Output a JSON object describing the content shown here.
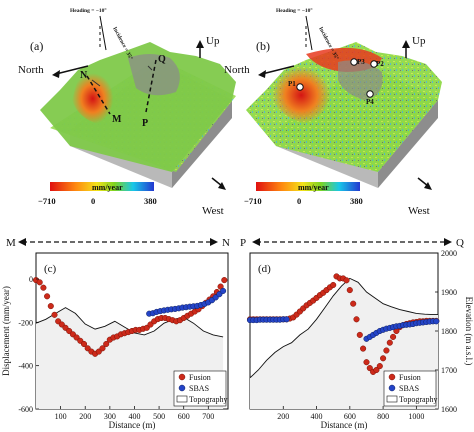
{
  "maps": [
    {
      "panel": "(a)",
      "heading": "Heading = −10°",
      "incidence": "Incidence = 35°",
      "up": "Up",
      "north": "North",
      "west": "West",
      "points": [
        "N",
        "M",
        "Q",
        "P"
      ],
      "colorbar": {
        "unit": "mm/year",
        "ticks": [
          "−710",
          "0",
          "380"
        ]
      }
    },
    {
      "panel": "(b)",
      "heading": "Heading = −10°",
      "incidence": "Incidence = 35°",
      "up": "Up",
      "north": "North",
      "west": "West",
      "points": [
        "P1",
        "P2",
        "P3",
        "P4"
      ],
      "colorbar": {
        "unit": "mm/year",
        "ticks": [
          "−710",
          "0",
          "380"
        ]
      }
    }
  ],
  "profile_arrows": [
    {
      "start": "M",
      "end": "N"
    },
    {
      "start": "P",
      "end": "Q"
    }
  ],
  "chart_data": [
    {
      "panel": "(c)",
      "type": "scatter",
      "xlabel": "Distance (m)",
      "ylabel": "Displacement (mm/year)",
      "xlim": [
        0,
        780
      ],
      "ylim": [
        -600,
        120
      ],
      "xticks": [
        100,
        200,
        300,
        400,
        500,
        600,
        700
      ],
      "yticks": [
        0,
        -200,
        -400,
        -600
      ],
      "series": [
        {
          "name": "Fusion",
          "color": "#cc2a1a",
          "x": [
            0,
            15,
            30,
            45,
            60,
            75,
            90,
            105,
            120,
            135,
            150,
            165,
            180,
            195,
            210,
            225,
            240,
            255,
            270,
            285,
            300,
            315,
            330,
            345,
            360,
            375,
            390,
            405,
            420,
            435,
            450,
            465,
            480,
            495,
            510,
            525,
            540,
            555,
            570,
            585,
            600,
            615,
            630,
            645,
            660,
            675,
            690,
            705,
            720,
            735,
            750,
            765
          ],
          "y": [
            -5,
            -15,
            -40,
            -80,
            -125,
            -165,
            -195,
            -210,
            -225,
            -240,
            -255,
            -270,
            -285,
            -300,
            -320,
            -335,
            -345,
            -335,
            -320,
            -300,
            -280,
            -270,
            -265,
            -255,
            -250,
            -245,
            -240,
            -235,
            -235,
            -230,
            -225,
            -210,
            -195,
            -185,
            -180,
            -180,
            -185,
            -190,
            -195,
            -190,
            -180,
            -170,
            -160,
            -150,
            -140,
            -125,
            -110,
            -95,
            -80,
            -60,
            -35,
            -5
          ]
        },
        {
          "name": "SBAS",
          "color": "#2444c8",
          "x": [
            460,
            475,
            490,
            505,
            520,
            535,
            550,
            565,
            580,
            595,
            610,
            625,
            640,
            655,
            670,
            685,
            700,
            715,
            730,
            745,
            760
          ],
          "y": [
            -160,
            -158,
            -152,
            -148,
            -145,
            -142,
            -140,
            -138,
            -135,
            -132,
            -130,
            -128,
            -126,
            -124,
            -120,
            -115,
            -108,
            -98,
            -85,
            -70,
            -55
          ]
        },
        {
          "name": "Topography",
          "color": "#111111",
          "x": [
            0,
            40,
            80,
            120,
            160,
            200,
            240,
            280,
            320,
            360,
            400,
            440,
            480,
            520,
            560,
            600,
            640,
            680,
            720,
            760
          ],
          "y": [
            1820,
            1830,
            1845,
            1860,
            1845,
            1818,
            1805,
            1812,
            1825,
            1810,
            1795,
            1790,
            1800,
            1820,
            1830,
            1835,
            1820,
            1800,
            1790,
            1785
          ]
        }
      ],
      "legend": [
        "Fusion",
        "SBAS",
        "Topography"
      ],
      "legend_position": "bottom-right"
    },
    {
      "panel": "(d)",
      "type": "scatter",
      "xlabel": "Distance (m)",
      "ylabel": "Elevation (m a.s.l.)",
      "xlim": [
        0,
        1130
      ],
      "ylim": [
        1600,
        2000
      ],
      "xticks": [
        200,
        400,
        600,
        800,
        1000
      ],
      "yticks": [
        1600,
        1700,
        1800,
        1900,
        2000
      ],
      "series": [
        {
          "name": "Fusion",
          "color": "#cc2a1a",
          "x": [
            0,
            20,
            40,
            60,
            80,
            100,
            120,
            140,
            160,
            180,
            200,
            220,
            240,
            260,
            280,
            300,
            320,
            340,
            360,
            380,
            400,
            420,
            440,
            460,
            480,
            500,
            520,
            540,
            560,
            580,
            600,
            620,
            640,
            660,
            680,
            700,
            720,
            740,
            760,
            780,
            800,
            820,
            840,
            860,
            880,
            900,
            920,
            940,
            960,
            980,
            1000,
            1020,
            1040,
            1060,
            1080,
            1100,
            1120
          ],
          "y": [
            1830,
            1830,
            1830,
            1830,
            1830,
            1830,
            1830,
            1830,
            1830,
            1830,
            1830,
            1830,
            1832,
            1835,
            1842,
            1850,
            1858,
            1866,
            1872,
            1878,
            1885,
            1892,
            1898,
            1905,
            1912,
            1918,
            1940,
            1935,
            1935,
            1930,
            1905,
            1870,
            1830,
            1790,
            1755,
            1720,
            1705,
            1695,
            1700,
            1710,
            1730,
            1750,
            1770,
            1785,
            1800,
            1810,
            1815,
            1818,
            1820,
            1822,
            1823,
            1825,
            1825,
            1826,
            1826,
            1826,
            1826
          ]
        },
        {
          "name": "SBAS",
          "color": "#2444c8",
          "x": [
            0,
            20,
            40,
            60,
            80,
            100,
            120,
            140,
            160,
            180,
            200,
            220,
            700,
            720,
            740,
            760,
            780,
            800,
            820,
            840,
            860,
            880,
            900,
            920,
            940,
            960,
            980,
            1000,
            1020,
            1040,
            1060,
            1080,
            1100,
            1120
          ],
          "y": [
            1828,
            1828,
            1828,
            1829,
            1829,
            1829,
            1829,
            1829,
            1829,
            1829,
            1830,
            1830,
            1780,
            1785,
            1790,
            1795,
            1800,
            1803,
            1806,
            1808,
            1810,
            1812,
            1813,
            1815,
            1816,
            1817,
            1818,
            1820,
            1821,
            1822,
            1823,
            1824,
            1825,
            1825
          ]
        },
        {
          "name": "Topography",
          "color": "#111111",
          "x": [
            0,
            50,
            100,
            150,
            200,
            250,
            300,
            350,
            400,
            450,
            500,
            550,
            600,
            650,
            700,
            750,
            800,
            850,
            900,
            950,
            1000,
            1050,
            1100,
            1130
          ],
          "y": [
            1680,
            1700,
            1725,
            1745,
            1760,
            1770,
            1790,
            1805,
            1830,
            1860,
            1890,
            1915,
            1935,
            1925,
            1900,
            1885,
            1870,
            1862,
            1855,
            1850,
            1845,
            1843,
            1842,
            1842
          ]
        }
      ],
      "legend": [
        "Fusion",
        "SBAS",
        "Topography"
      ],
      "legend_position": "bottom-right"
    }
  ]
}
